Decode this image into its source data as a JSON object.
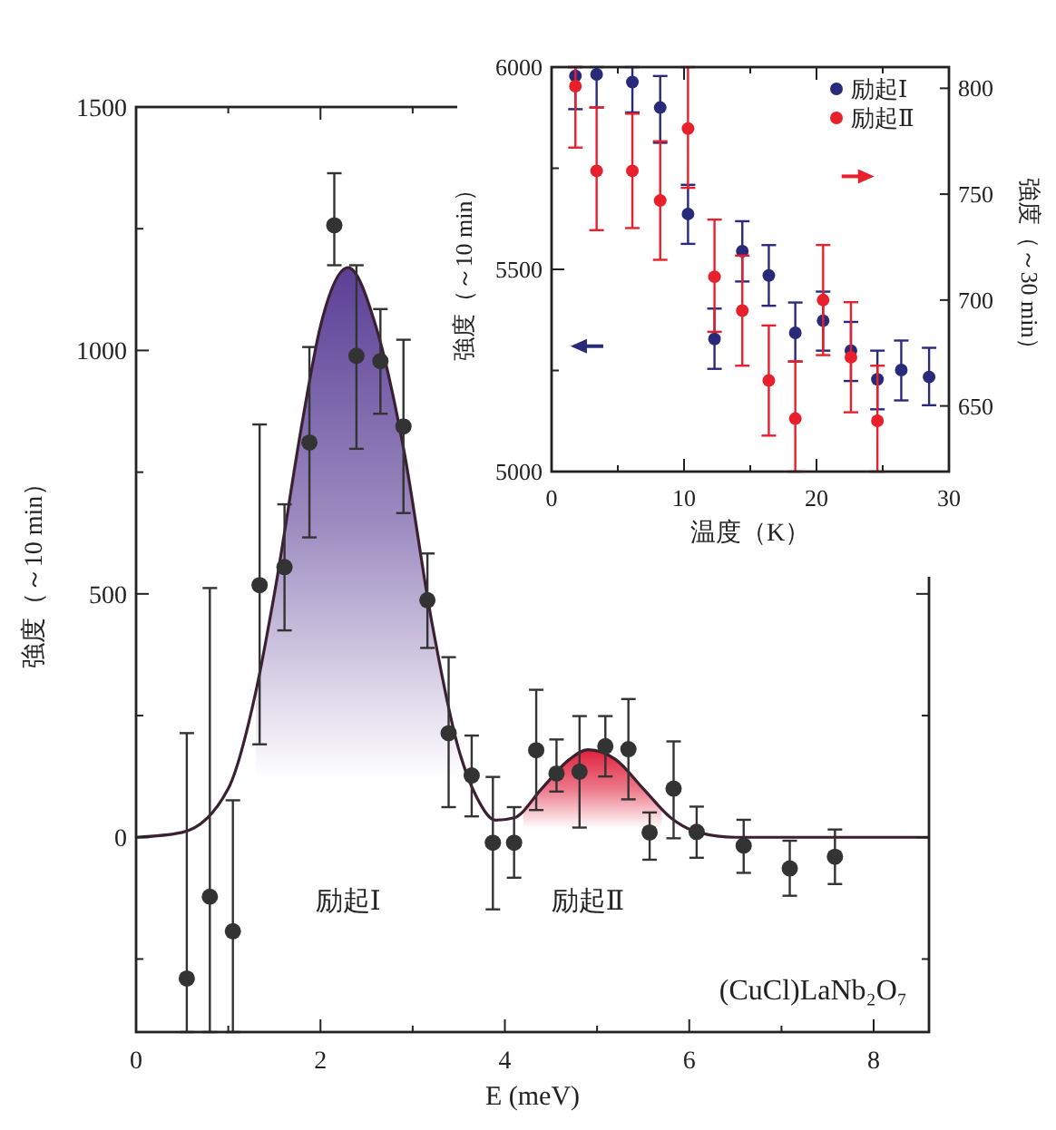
{
  "chart_data": [
    {
      "type": "scatter",
      "xlabel": "E (meV)",
      "ylabel": "強度（～10 min）",
      "xlim": [
        0,
        8.6
      ],
      "ylim": [
        -400,
        1500
      ],
      "xticks": [
        0,
        {
          "value": 1,
          "label": null
        },
        2,
        {
          "value": 3,
          "label": null
        },
        4,
        {
          "value": 5,
          "label": null
        },
        6,
        {
          "value": 7,
          "label": null
        },
        8
      ],
      "yticks": [
        {
          "value": -250,
          "label": null
        },
        0,
        {
          "value": 250,
          "label": null
        },
        500,
        {
          "value": 750,
          "label": null
        },
        1000,
        {
          "value": 1250,
          "label": null
        },
        1500
      ],
      "legend": false,
      "series": [
        {
          "type": "area",
          "color": "#5b3f96",
          "x": [
            1.3,
            1.5,
            1.8,
            2.0,
            2.3,
            2.6,
            2.9,
            3.2,
            3.5
          ],
          "values": [
            300,
            500,
            850,
            1050,
            1170,
            1050,
            800,
            450,
            180
          ]
        },
        {
          "type": "area",
          "color": "#e0203c",
          "x": [
            4.2,
            4.4,
            4.7,
            4.9,
            5.2,
            5.5,
            5.7
          ],
          "values": [
            60,
            100,
            160,
            180,
            160,
            100,
            60
          ]
        },
        {
          "type": "line",
          "color": "#3a2030",
          "line_style": "solid",
          "x": [
            0,
            0.5,
            1.0,
            1.3,
            1.5,
            1.8,
            2.0,
            2.3,
            2.6,
            2.9,
            3.2,
            3.5,
            3.7,
            3.9,
            4.1,
            4.4,
            4.7,
            4.9,
            5.2,
            5.5,
            5.8,
            6.1,
            6.5,
            8.6
          ],
          "values": [
            0,
            10,
            100,
            300,
            500,
            850,
            1050,
            1170,
            1050,
            800,
            450,
            180,
            80,
            35,
            40,
            100,
            160,
            180,
            160,
            100,
            40,
            10,
            0,
            0
          ]
        },
        {
          "marker": "circle",
          "color": "#333333",
          "x": [
            0.55,
            0.8,
            1.05,
            1.34,
            1.61,
            1.88,
            2.15,
            2.39,
            2.65,
            2.9,
            3.16,
            3.39,
            3.64,
            3.87,
            4.1,
            4.34,
            4.56,
            4.81,
            5.09,
            5.34,
            5.57,
            5.83,
            6.08,
            6.59,
            7.09,
            7.58
          ],
          "values": [
            -290,
            -122,
            -193,
            518,
            555,
            811,
            1257,
            989,
            978,
            844,
            487,
            214,
            127,
            -11,
            -11,
            179,
            131,
            135,
            187,
            181,
            10,
            100,
            11,
            -17,
            -64,
            -40
          ],
          "errors": [
            [
              -400,
              214
            ],
            [
              -400,
              512
            ],
            [
              -400,
              76
            ],
            [
              191,
              848
            ],
            [
              425,
              684
            ],
            [
              616,
              1007
            ],
            [
              1175,
              1364
            ],
            [
              798,
              1175
            ],
            [
              870,
              1085
            ],
            [
              666,
              1022
            ],
            [
              389,
              583
            ],
            [
              62,
              370
            ],
            [
              43,
              209
            ],
            [
              -148,
              124
            ],
            [
              -83,
              62
            ],
            [
              56,
              303
            ],
            [
              94,
              201
            ],
            [
              20,
              249
            ],
            [
              125,
              249
            ],
            [
              78,
              284
            ],
            [
              -46,
              51
            ],
            [
              -2,
              197
            ],
            [
              -42,
              63
            ],
            [
              -73,
              36
            ],
            [
              -120,
              -7
            ],
            [
              -96,
              16
            ]
          ]
        }
      ],
      "annotations": [
        "励起Ⅰ",
        "励起Ⅱ",
        "(CuCl)LaNb₂O₇"
      ]
    },
    {
      "type": "scatter",
      "xlabel": "温度（K）",
      "ylabel": "強度（～10 min）",
      "y2label": "強度（～30 min）",
      "xlim": [
        0,
        30
      ],
      "ylim": [
        5000,
        6000
      ],
      "y2lim": [
        619,
        810
      ],
      "xticks": [
        0,
        {
          "value": 5,
          "label": null
        },
        10,
        {
          "value": 15,
          "label": null
        },
        20,
        {
          "value": 25,
          "label": null
        },
        30
      ],
      "yticks": [
        5000,
        {
          "value": 5250,
          "label": null
        },
        5500,
        {
          "value": 5750,
          "label": null
        },
        6000
      ],
      "y2ticks": [
        650,
        700,
        750,
        800
      ],
      "legend": "top right",
      "series": [
        {
          "marker": "circle",
          "name": "励起Ⅰ",
          "color": "#2a2a7a",
          "x": [
            1.8,
            3.4,
            6.1,
            8.2,
            10.3,
            12.3,
            14.4,
            16.4,
            18.4,
            20.5,
            22.6,
            24.6,
            26.4,
            28.5
          ],
          "values": [
            5978,
            5982,
            5963,
            5900,
            5637,
            5328,
            5545,
            5485,
            5343,
            5373,
            5299,
            5228,
            5251,
            5234
          ],
          "errors": [
            [
              5896,
              6000
            ],
            [
              5900,
              6000
            ],
            [
              5888,
              6000
            ],
            [
              5813,
              5978
            ],
            [
              5563,
              5709
            ],
            [
              5254,
              5403
            ],
            [
              5470,
              5619
            ],
            [
              5410,
              5560
            ],
            [
              5272,
              5418
            ],
            [
              5299,
              5445
            ],
            [
              5224,
              5370
            ],
            [
              5154,
              5299
            ],
            [
              5176,
              5324
            ],
            [
              5164,
              5306
            ]
          ]
        },
        {
          "marker": "circle",
          "name": "励起Ⅱ",
          "color": "#e8202c",
          "axis": "y2",
          "x": [
            1.8,
            3.4,
            6.1,
            8.2,
            10.3,
            12.3,
            14.4,
            16.4,
            18.4,
            20.5,
            22.6,
            24.6
          ],
          "values": [
            801,
            761,
            761,
            747,
            781,
            711,
            695,
            662,
            644,
            700,
            673,
            643
          ],
          "errors": [
            [
              772,
              810
            ],
            [
              733,
              791
            ],
            [
              734,
              788
            ],
            [
              719,
              775
            ],
            [
              753,
              810
            ],
            [
              685,
              738
            ],
            [
              669,
              721
            ],
            [
              636,
              688
            ],
            [
              619,
              671
            ],
            [
              674,
              726
            ],
            [
              647,
              699
            ],
            [
              619,
              669
            ]
          ]
        }
      ]
    }
  ]
}
